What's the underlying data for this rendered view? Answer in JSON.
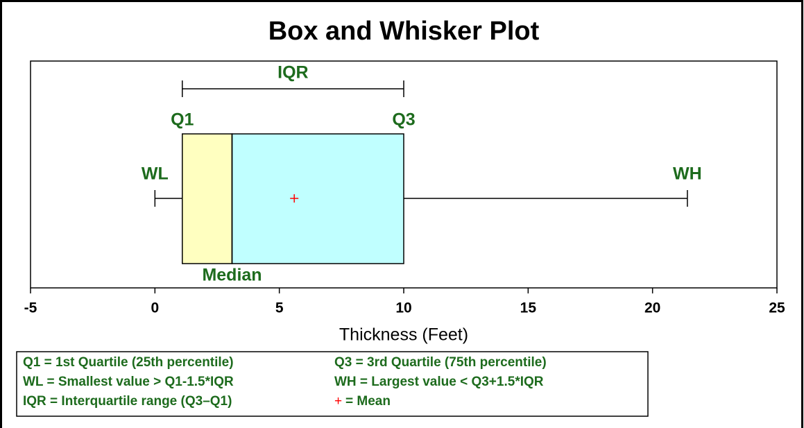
{
  "chart_data": {
    "type": "box",
    "title": "Box and Whisker Plot",
    "x_label": "Thickness (Feet)",
    "xlim": [
      -5,
      25
    ],
    "xticks": [
      -5,
      0,
      5,
      10,
      15,
      20,
      25
    ],
    "boxes": [
      {
        "whislo": 0,
        "q1": 1.1,
        "med": 3.1,
        "q3": 10,
        "whishi": 21.4,
        "mean": 5.6,
        "lower_color": "#ffffc0",
        "upper_color": "#c0ffff",
        "mean_color": "#ff0000"
      }
    ],
    "annotations": {
      "iqr": "IQR",
      "q1": "Q1",
      "q3": "Q3",
      "wl": "WL",
      "wh": "WH",
      "median": "Median"
    },
    "legend": {
      "items": [
        "Q1 = 1st Quartile (25th percentile)",
        "Q3 = 3rd Quartile (75th percentile)",
        "WL = Smallest value > Q1-1.5*IQR",
        "WH = Largest value < Q3+1.5*IQR",
        "IQR = Interquartile range (Q3–Q1)"
      ],
      "mean_symbol": "+",
      "mean_text": "= Mean"
    }
  }
}
